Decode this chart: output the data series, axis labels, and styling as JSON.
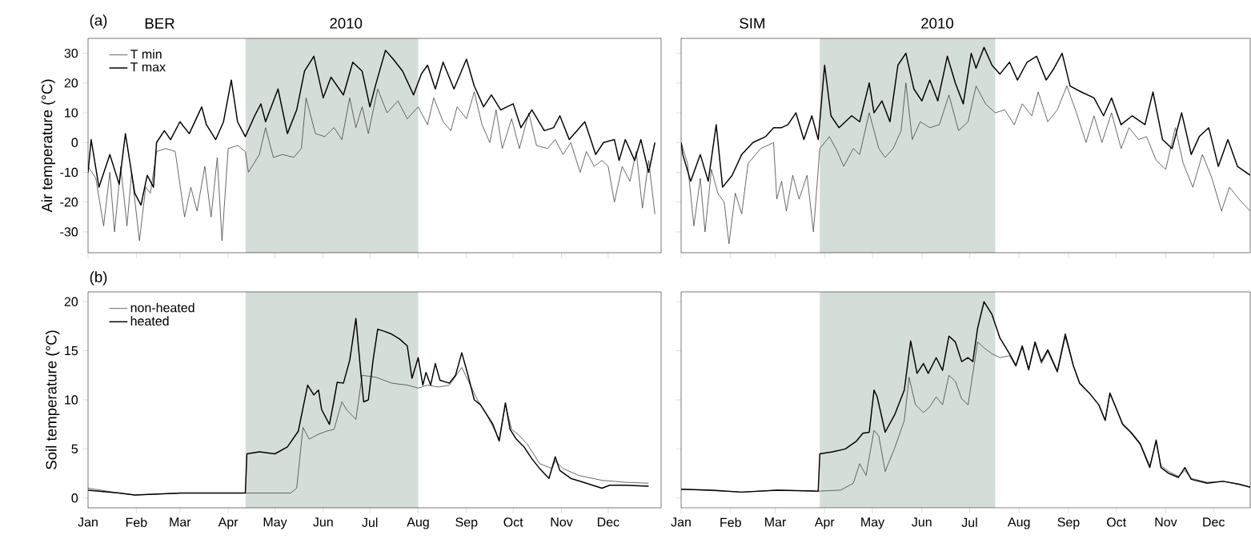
{
  "chart_data": [
    {
      "type": "line",
      "title": "BER",
      "subtitle": "2010",
      "annotations": [
        "(a)"
      ],
      "ylabel": "Air temperature (°C)",
      "legend": "top left",
      "tick_labels": "y",
      "xlim": [
        "2010-01-01",
        "2011-01-04"
      ],
      "ylim": [
        -37,
        35
      ],
      "xticks": [
        {
          "value": "2010-01-01",
          "label": null
        },
        {
          "value": "2010-02-01",
          "label": null
        },
        {
          "value": "2010-03-01",
          "label": null
        },
        {
          "value": "2010-04-01",
          "label": null
        },
        {
          "value": "2010-05-01",
          "label": null
        },
        {
          "value": "2010-06-01",
          "label": null
        },
        {
          "value": "2010-07-01",
          "label": null
        },
        {
          "value": "2010-08-01",
          "label": null
        },
        {
          "value": "2010-09-01",
          "label": null
        },
        {
          "value": "2010-10-01",
          "label": null
        },
        {
          "value": "2010-11-01",
          "label": null
        },
        {
          "value": "2010-12-01",
          "label": null
        }
      ],
      "yticks": [
        -30,
        -20,
        -10,
        0,
        10,
        20,
        30
      ],
      "bands": [
        {
          "axis": "x",
          "from": "2010-04-12",
          "to": "2010-08-01",
          "color": "#d5ddd9"
        }
      ],
      "series": [
        {
          "name": "T min",
          "color": "#444444",
          "x": [
            "2010-01-01",
            "2010-01-06",
            "2010-01-11",
            "2010-01-15",
            "2010-01-18",
            "2010-01-22",
            "2010-01-26",
            "2010-01-29",
            "2010-02-03",
            "2010-02-07",
            "2010-02-10",
            "2010-02-14",
            "2010-02-20",
            "2010-02-26",
            "2010-03-04",
            "2010-03-08",
            "2010-03-12",
            "2010-03-17",
            "2010-03-21",
            "2010-03-25",
            "2010-03-28",
            "2010-04-01",
            "2010-04-07",
            "2010-04-12",
            "2010-04-14",
            "2010-04-21",
            "2010-04-25",
            "2010-04-30",
            "2010-05-06",
            "2010-05-13",
            "2010-05-18",
            "2010-05-21",
            "2010-05-27",
            "2010-06-02",
            "2010-06-08",
            "2010-06-13",
            "2010-06-18",
            "2010-06-22",
            "2010-06-26",
            "2010-06-30",
            "2010-07-06",
            "2010-07-12",
            "2010-07-19",
            "2010-07-25",
            "2010-08-01",
            "2010-08-07",
            "2010-08-11",
            "2010-08-17",
            "2010-08-22",
            "2010-08-26",
            "2010-09-01",
            "2010-09-06",
            "2010-09-11",
            "2010-09-16",
            "2010-09-20",
            "2010-09-24",
            "2010-09-30",
            "2010-10-05",
            "2010-10-11",
            "2010-10-16",
            "2010-10-23",
            "2010-10-28",
            "2010-11-02",
            "2010-11-07",
            "2010-11-13",
            "2010-11-17",
            "2010-11-22",
            "2010-11-27",
            "2010-12-01",
            "2010-12-05",
            "2010-12-10",
            "2010-12-15",
            "2010-12-19",
            "2010-12-23",
            "2010-12-27",
            "2010-12-31"
          ],
          "values": [
            -8,
            -12,
            -28,
            -10,
            -30,
            -8,
            -28,
            -10,
            -33,
            -15,
            -17,
            -3,
            -2,
            -3,
            -25,
            -15,
            -23,
            -8,
            -25,
            -5,
            -33,
            -2,
            -1,
            -3,
            -10,
            -4,
            5,
            -5,
            -4,
            -5,
            -2,
            15,
            3,
            2,
            5,
            1,
            15,
            5,
            12,
            3,
            18,
            10,
            14,
            8,
            12,
            6,
            15,
            7,
            4,
            12,
            8,
            17,
            6,
            0,
            11,
            -2,
            8,
            -2,
            10,
            -1,
            -2,
            1,
            -4,
            0,
            -10,
            -3,
            -8,
            -6,
            -8,
            -20,
            -8,
            -13,
            -3,
            -22,
            -6,
            -24
          ]
        },
        {
          "name": "T max",
          "color": "#000000",
          "x": [
            "2010-01-01",
            "2010-01-03",
            "2010-01-08",
            "2010-01-15",
            "2010-01-21",
            "2010-01-25",
            "2010-01-31",
            "2010-02-04",
            "2010-02-08",
            "2010-02-12",
            "2010-02-14",
            "2010-02-19",
            "2010-02-23",
            "2010-03-01",
            "2010-03-07",
            "2010-03-15",
            "2010-03-18",
            "2010-03-24",
            "2010-03-29",
            "2010-04-03",
            "2010-04-07",
            "2010-04-12",
            "2010-04-18",
            "2010-04-22",
            "2010-04-25",
            "2010-05-03",
            "2010-05-09",
            "2010-05-15",
            "2010-05-20",
            "2010-05-26",
            "2010-06-01",
            "2010-06-06",
            "2010-06-14",
            "2010-06-20",
            "2010-06-26",
            "2010-07-01",
            "2010-07-05",
            "2010-07-11",
            "2010-07-16",
            "2010-07-22",
            "2010-07-29",
            "2010-08-03",
            "2010-08-07",
            "2010-08-12",
            "2010-08-17",
            "2010-08-24",
            "2010-09-01",
            "2010-09-06",
            "2010-09-12",
            "2010-09-17",
            "2010-09-23",
            "2010-10-01",
            "2010-10-06",
            "2010-10-13",
            "2010-10-21",
            "2010-10-27",
            "2010-10-31",
            "2010-11-06",
            "2010-11-11",
            "2010-11-16",
            "2010-11-23",
            "2010-11-28",
            "2010-12-05",
            "2010-12-08",
            "2010-12-12",
            "2010-12-18",
            "2010-12-22",
            "2010-12-27",
            "2010-12-31"
          ],
          "values": [
            -10,
            1,
            -15,
            -4,
            -14,
            3,
            -17,
            -21,
            -11,
            -15,
            0,
            4,
            1,
            7,
            3,
            12,
            6,
            1,
            7,
            21,
            7,
            2,
            9,
            13,
            7,
            18,
            3,
            11,
            24,
            29,
            15,
            22,
            16,
            27,
            24,
            12,
            20,
            31,
            28,
            24,
            16,
            23,
            26,
            18,
            27,
            18,
            28,
            19,
            12,
            16,
            11,
            13,
            5,
            11,
            4,
            5,
            9,
            1,
            4,
            7,
            -4,
            0,
            1,
            -6,
            1,
            -6,
            1,
            -10,
            0
          ]
        }
      ]
    },
    {
      "type": "line",
      "title": "SIM",
      "subtitle": "2010",
      "tick_labels": false,
      "xlim": [
        "2010-01-01",
        "2010-12-24"
      ],
      "ylim": [
        -37,
        35
      ],
      "xticks": [
        {
          "value": "2010-01-01",
          "label": null
        },
        {
          "value": "2010-02-01",
          "label": null
        },
        {
          "value": "2010-03-01",
          "label": null
        },
        {
          "value": "2010-04-01",
          "label": null
        },
        {
          "value": "2010-05-01",
          "label": null
        },
        {
          "value": "2010-06-01",
          "label": null
        },
        {
          "value": "2010-07-01",
          "label": null
        },
        {
          "value": "2010-08-01",
          "label": null
        },
        {
          "value": "2010-09-01",
          "label": null
        },
        {
          "value": "2010-10-01",
          "label": null
        },
        {
          "value": "2010-11-01",
          "label": null
        },
        {
          "value": "2010-12-01",
          "label": null
        }
      ],
      "yticks": [
        {
          "value": -30,
          "label": null
        },
        {
          "value": -20,
          "label": null
        },
        {
          "value": -10,
          "label": null
        },
        {
          "value": 0,
          "label": null
        },
        {
          "value": 10,
          "label": null
        },
        {
          "value": 20,
          "label": null
        },
        {
          "value": 30,
          "label": null
        }
      ],
      "bands": [
        {
          "axis": "x",
          "from": "2010-03-29",
          "to": "2010-07-17",
          "color": "#d5ddd9"
        }
      ],
      "series": [
        {
          "color": "#444444",
          "x": [
            "2010-01-01",
            "2010-01-05",
            "2010-01-09",
            "2010-01-13",
            "2010-01-16",
            "2010-01-20",
            "2010-01-24",
            "2010-01-28",
            "2010-01-31",
            "2010-02-04",
            "2010-02-08",
            "2010-02-12",
            "2010-02-20",
            "2010-02-28",
            "2010-03-02",
            "2010-03-05",
            "2010-03-08",
            "2010-03-12",
            "2010-03-16",
            "2010-03-21",
            "2010-03-25",
            "2010-03-29",
            "2010-04-04",
            "2010-04-09",
            "2010-04-13",
            "2010-04-19",
            "2010-04-23",
            "2010-04-29",
            "2010-05-05",
            "2010-05-09",
            "2010-05-14",
            "2010-05-19",
            "2010-05-22",
            "2010-05-26",
            "2010-05-31",
            "2010-06-06",
            "2010-06-12",
            "2010-06-18",
            "2010-06-24",
            "2010-06-30",
            "2010-07-05",
            "2010-07-11",
            "2010-07-17",
            "2010-07-23",
            "2010-07-29",
            "2010-08-03",
            "2010-08-09",
            "2010-08-13",
            "2010-08-19",
            "2010-08-25",
            "2010-08-31",
            "2010-09-06",
            "2010-09-12",
            "2010-09-17",
            "2010-09-22",
            "2010-09-28",
            "2010-10-04",
            "2010-10-09",
            "2010-10-15",
            "2010-10-20",
            "2010-10-26",
            "2010-11-01",
            "2010-11-07",
            "2010-11-12",
            "2010-11-18",
            "2010-11-24",
            "2010-11-30",
            "2010-12-06",
            "2010-12-11",
            "2010-12-17",
            "2010-12-24"
          ],
          "values": [
            0,
            -7,
            -28,
            -12,
            -30,
            -9,
            -17,
            -20,
            -34,
            -17,
            -24,
            -7,
            -2,
            0,
            -19,
            -13,
            -23,
            -11,
            -19,
            -11,
            -30,
            -2,
            2,
            -3,
            -8,
            -2,
            -4,
            10,
            -2,
            -5,
            -2,
            4,
            20,
            1,
            7,
            5,
            6,
            16,
            4,
            7,
            19,
            13,
            10,
            11,
            6,
            13,
            9,
            17,
            7,
            11,
            19,
            10,
            0,
            9,
            0,
            10,
            -2,
            5,
            1,
            2,
            -6,
            -9,
            5,
            -7,
            -15,
            -4,
            -12,
            -23,
            -15,
            -19,
            -23
          ]
        },
        {
          "color": "#000000",
          "x": [
            "2010-01-01",
            "2010-01-02",
            "2010-01-07",
            "2010-01-13",
            "2010-01-18",
            "2010-01-23",
            "2010-01-27",
            "2010-02-02",
            "2010-02-08",
            "2010-02-15",
            "2010-02-23",
            "2010-02-28",
            "2010-03-05",
            "2010-03-09",
            "2010-03-14",
            "2010-03-19",
            "2010-03-24",
            "2010-03-28",
            "2010-04-01",
            "2010-04-05",
            "2010-04-10",
            "2010-04-18",
            "2010-04-23",
            "2010-04-29",
            "2010-05-02",
            "2010-05-07",
            "2010-05-12",
            "2010-05-17",
            "2010-05-22",
            "2010-05-27",
            "2010-06-01",
            "2010-06-06",
            "2010-06-11",
            "2010-06-17",
            "2010-06-22",
            "2010-06-27",
            "2010-07-02",
            "2010-07-05",
            "2010-07-10",
            "2010-07-15",
            "2010-07-20",
            "2010-07-26",
            "2010-07-31",
            "2010-08-06",
            "2010-08-12",
            "2010-08-18",
            "2010-08-23",
            "2010-08-28",
            "2010-09-02",
            "2010-09-09",
            "2010-09-17",
            "2010-09-23",
            "2010-09-28",
            "2010-10-04",
            "2010-10-11",
            "2010-10-19",
            "2010-10-24",
            "2010-10-30",
            "2010-11-05",
            "2010-11-11",
            "2010-11-17",
            "2010-11-22",
            "2010-11-28",
            "2010-12-04",
            "2010-12-10",
            "2010-12-16",
            "2010-12-24"
          ],
          "values": [
            0,
            -4,
            -13,
            -4,
            -13,
            6,
            -15,
            -11,
            -4,
            0,
            2,
            5,
            5,
            6,
            10,
            1,
            9,
            1,
            26,
            9,
            5,
            9,
            7,
            20,
            10,
            14,
            7,
            26,
            30,
            18,
            14,
            21,
            14,
            29,
            20,
            13,
            30,
            25,
            32,
            26,
            23,
            27,
            21,
            27,
            29,
            21,
            25,
            30,
            19,
            17,
            15,
            9,
            15,
            6,
            9,
            6,
            17,
            1,
            -2,
            10,
            -4,
            2,
            5,
            -8,
            1,
            -8,
            -11
          ]
        }
      ]
    },
    {
      "type": "line",
      "annotations": [
        "(b)"
      ],
      "ylabel": "Soil temperature (°C)",
      "legend": "top left",
      "xlim": [
        "2010-01-01",
        "2011-01-04"
      ],
      "ylim": [
        -1,
        21
      ],
      "xticks": [
        {
          "value": "2010-01-01",
          "label": "Jan"
        },
        {
          "value": "2010-02-01",
          "label": "Feb"
        },
        {
          "value": "2010-03-01",
          "label": "Mar"
        },
        {
          "value": "2010-04-01",
          "label": "Apr"
        },
        {
          "value": "2010-05-01",
          "label": "May"
        },
        {
          "value": "2010-06-01",
          "label": "Jun"
        },
        {
          "value": "2010-07-01",
          "label": "Jul"
        },
        {
          "value": "2010-08-01",
          "label": "Aug"
        },
        {
          "value": "2010-09-01",
          "label": "Sep"
        },
        {
          "value": "2010-10-01",
          "label": "Oct"
        },
        {
          "value": "2010-11-01",
          "label": "Nov"
        },
        {
          "value": "2010-12-01",
          "label": "Dec"
        }
      ],
      "yticks": [
        0,
        5,
        10,
        15,
        20
      ],
      "bands": [
        {
          "axis": "x",
          "from": "2010-04-12",
          "to": "2010-08-01",
          "color": "#d5ddd9"
        }
      ],
      "series": [
        {
          "name": "non-heated",
          "color": "#444444",
          "x": [
            "2010-01-01",
            "2010-01-21",
            "2010-01-31",
            "2010-03-02",
            "2010-04-01",
            "2010-05-11",
            "2010-05-15",
            "2010-05-19",
            "2010-05-23",
            "2010-05-29",
            "2010-06-03",
            "2010-06-08",
            "2010-06-13",
            "2010-06-16",
            "2010-06-22",
            "2010-06-26",
            "2010-07-05",
            "2010-07-15",
            "2010-07-25",
            "2010-08-01",
            "2010-08-07",
            "2010-08-14",
            "2010-08-21",
            "2010-08-29",
            "2010-09-02",
            "2010-09-08",
            "2010-09-14",
            "2010-09-22",
            "2010-09-26",
            "2010-09-30",
            "2010-10-04",
            "2010-10-10",
            "2010-10-18",
            "2010-10-26",
            "2010-10-28",
            "2010-11-02",
            "2010-11-12",
            "2010-11-27",
            "2010-12-12",
            "2010-12-27"
          ],
          "values": [
            1,
            0.5,
            0.3,
            0.5,
            0.5,
            0.5,
            1,
            7.2,
            6,
            6.5,
            6.8,
            7,
            9.8,
            9,
            8,
            12.5,
            12.3,
            11.7,
            11.5,
            11.2,
            11.5,
            11.3,
            11.5,
            13.3,
            12,
            10,
            8.5,
            6,
            9.5,
            7,
            6.5,
            5.5,
            3.5,
            3,
            3.8,
            3,
            2.3,
            1.8,
            1.6,
            1.5
          ]
        },
        {
          "name": "heated",
          "color": "#000000",
          "x": [
            "2010-01-01",
            "2010-01-21",
            "2010-01-31",
            "2010-03-02",
            "2010-04-01",
            "2010-04-12",
            "2010-04-13",
            "2010-04-21",
            "2010-05-01",
            "2010-05-09",
            "2010-05-16",
            "2010-05-22",
            "2010-05-26",
            "2010-05-29",
            "2010-05-31",
            "2010-06-05",
            "2010-06-08",
            "2010-06-10",
            "2010-06-14",
            "2010-06-18",
            "2010-06-22",
            "2010-06-25",
            "2010-06-27",
            "2010-06-30",
            "2010-07-03",
            "2010-07-06",
            "2010-07-10",
            "2010-07-15",
            "2010-07-20",
            "2010-07-25",
            "2010-07-28",
            "2010-08-01",
            "2010-08-04",
            "2010-08-06",
            "2010-08-09",
            "2010-08-12",
            "2010-08-15",
            "2010-08-21",
            "2010-08-25",
            "2010-08-29",
            "2010-09-02",
            "2010-09-06",
            "2010-09-10",
            "2010-09-14",
            "2010-09-18",
            "2010-09-22",
            "2010-09-26",
            "2010-09-29",
            "2010-10-03",
            "2010-10-08",
            "2010-10-13",
            "2010-10-18",
            "2010-10-24",
            "2010-10-28",
            "2010-10-31",
            "2010-11-07",
            "2010-11-17",
            "2010-11-27",
            "2010-12-02",
            "2010-12-12",
            "2010-12-27"
          ],
          "values": [
            0.8,
            0.5,
            0.3,
            0.5,
            0.5,
            0.5,
            4.5,
            4.7,
            4.5,
            5.2,
            6.8,
            11.5,
            10.5,
            11,
            9,
            7.5,
            10,
            11.8,
            11.7,
            14,
            18.3,
            13,
            9.8,
            10,
            14,
            17.2,
            17,
            16.7,
            16.2,
            15.5,
            12.2,
            14.3,
            11.5,
            12.8,
            11.5,
            13.7,
            12,
            11.7,
            12.5,
            14.8,
            12.5,
            10,
            9.5,
            8.5,
            7.5,
            5.8,
            9.7,
            7,
            6,
            5.2,
            4,
            3,
            2,
            4.2,
            2.8,
            2,
            1.5,
            1,
            1.3,
            1.3,
            1.2
          ]
        }
      ]
    },
    {
      "type": "line",
      "tick_labels": "x",
      "xlim": [
        "2010-01-01",
        "2010-12-24"
      ],
      "ylim": [
        -1,
        21
      ],
      "xticks": [
        {
          "value": "2010-01-01",
          "label": "Jan"
        },
        {
          "value": "2010-02-01",
          "label": "Feb"
        },
        {
          "value": "2010-03-01",
          "label": "Mar"
        },
        {
          "value": "2010-04-01",
          "label": "Apr"
        },
        {
          "value": "2010-05-01",
          "label": "May"
        },
        {
          "value": "2010-06-01",
          "label": "Jun"
        },
        {
          "value": "2010-07-01",
          "label": "Jul"
        },
        {
          "value": "2010-08-01",
          "label": "Aug"
        },
        {
          "value": "2010-09-01",
          "label": "Sep"
        },
        {
          "value": "2010-10-01",
          "label": "Oct"
        },
        {
          "value": "2010-11-01",
          "label": "Nov"
        },
        {
          "value": "2010-12-01",
          "label": "Dec"
        }
      ],
      "yticks": [
        {
          "value": 0,
          "label": null
        },
        {
          "value": 5,
          "label": null
        },
        {
          "value": 10,
          "label": null
        },
        {
          "value": 15,
          "label": null
        },
        {
          "value": 20,
          "label": null
        }
      ],
      "bands": [
        {
          "axis": "x",
          "from": "2010-03-29",
          "to": "2010-07-17",
          "color": "#d5ddd9"
        }
      ],
      "series": [
        {
          "color": "#444444",
          "x": [
            "2010-01-01",
            "2010-02-08",
            "2010-03-02",
            "2010-03-28",
            "2010-04-11",
            "2010-04-19",
            "2010-04-23",
            "2010-04-27",
            "2010-05-02",
            "2010-05-05",
            "2010-05-09",
            "2010-05-15",
            "2010-05-21",
            "2010-05-24",
            "2010-05-28",
            "2010-06-02",
            "2010-06-06",
            "2010-06-10",
            "2010-06-14",
            "2010-06-18",
            "2010-06-22",
            "2010-06-26",
            "2010-06-30",
            "2010-07-03",
            "2010-07-06",
            "2010-07-10",
            "2010-07-15",
            "2010-07-20",
            "2010-07-26",
            "2010-07-30",
            "2010-08-03",
            "2010-08-07",
            "2010-08-11",
            "2010-08-15",
            "2010-08-19",
            "2010-08-25",
            "2010-08-30",
            "2010-09-04",
            "2010-09-08",
            "2010-09-14",
            "2010-09-20",
            "2010-09-24",
            "2010-09-27",
            "2010-09-30",
            "2010-10-05",
            "2010-10-10",
            "2010-10-16",
            "2010-10-22",
            "2010-10-26",
            "2010-10-29",
            "2010-11-03",
            "2010-11-09",
            "2010-11-13",
            "2010-11-17",
            "2010-11-27",
            "2010-12-07",
            "2010-12-17",
            "2010-12-24"
          ],
          "values": [
            0.9,
            0.6,
            0.8,
            0.7,
            0.8,
            1.5,
            3.5,
            2.3,
            6.9,
            6.3,
            2.7,
            5.1,
            7.9,
            12.3,
            9.5,
            8.7,
            9.3,
            10.3,
            9.5,
            12.5,
            11.9,
            10.1,
            9.5,
            12.7,
            15.9,
            15.3,
            14.7,
            14.3,
            14.5,
            13.4,
            15.3,
            13,
            15.7,
            13.7,
            14.9,
            12.8,
            16.4,
            13.5,
            11.7,
            10.7,
            9.5,
            8,
            10.6,
            9.5,
            7.6,
            6.8,
            5.6,
            3.3,
            5.7,
            3.3,
            2.7,
            2.2,
            2.8,
            2,
            1.6,
            1.7,
            1.4,
            1.1
          ]
        },
        {
          "color": "#000000",
          "x": [
            "2010-01-01",
            "2010-01-21",
            "2010-02-08",
            "2010-03-02",
            "2010-03-28",
            "2010-03-29",
            "2010-04-06",
            "2010-04-14",
            "2010-04-21",
            "2010-04-25",
            "2010-04-29",
            "2010-05-02",
            "2010-05-04",
            "2010-05-09",
            "2010-05-15",
            "2010-05-21",
            "2010-05-25",
            "2010-05-29",
            "2010-06-02",
            "2010-06-05",
            "2010-06-10",
            "2010-06-14",
            "2010-06-18",
            "2010-06-22",
            "2010-06-26",
            "2010-06-30",
            "2010-07-03",
            "2010-07-06",
            "2010-07-10",
            "2010-07-15",
            "2010-07-20",
            "2010-07-26",
            "2010-07-30",
            "2010-08-03",
            "2010-08-07",
            "2010-08-11",
            "2010-08-15",
            "2010-08-19",
            "2010-08-25",
            "2010-08-30",
            "2010-09-04",
            "2010-09-08",
            "2010-09-14",
            "2010-09-20",
            "2010-09-24",
            "2010-09-27",
            "2010-09-30",
            "2010-10-05",
            "2010-10-10",
            "2010-10-16",
            "2010-10-22",
            "2010-10-26",
            "2010-10-29",
            "2010-11-03",
            "2010-11-09",
            "2010-11-13",
            "2010-11-17",
            "2010-11-27",
            "2010-12-07",
            "2010-12-17",
            "2010-12-24"
          ],
          "values": [
            0.9,
            0.8,
            0.6,
            0.8,
            0.7,
            4.5,
            4.7,
            5,
            5.8,
            6.6,
            6.7,
            11,
            10.3,
            6.7,
            8.5,
            11,
            16,
            12.7,
            13.7,
            12.7,
            14.3,
            13,
            16.5,
            15.9,
            13.9,
            14.3,
            13.9,
            17.3,
            20,
            18.7,
            16.3,
            14.7,
            13.5,
            15.5,
            13.1,
            15.9,
            13.9,
            15.1,
            12.9,
            16.7,
            13.5,
            11.7,
            10.7,
            9.5,
            7.9,
            10.7,
            9.5,
            7.5,
            6.7,
            5.5,
            3.1,
            5.9,
            3.1,
            2.5,
            2.1,
            3.1,
            1.9,
            1.5,
            1.7,
            1.4,
            1.1
          ]
        }
      ]
    }
  ]
}
